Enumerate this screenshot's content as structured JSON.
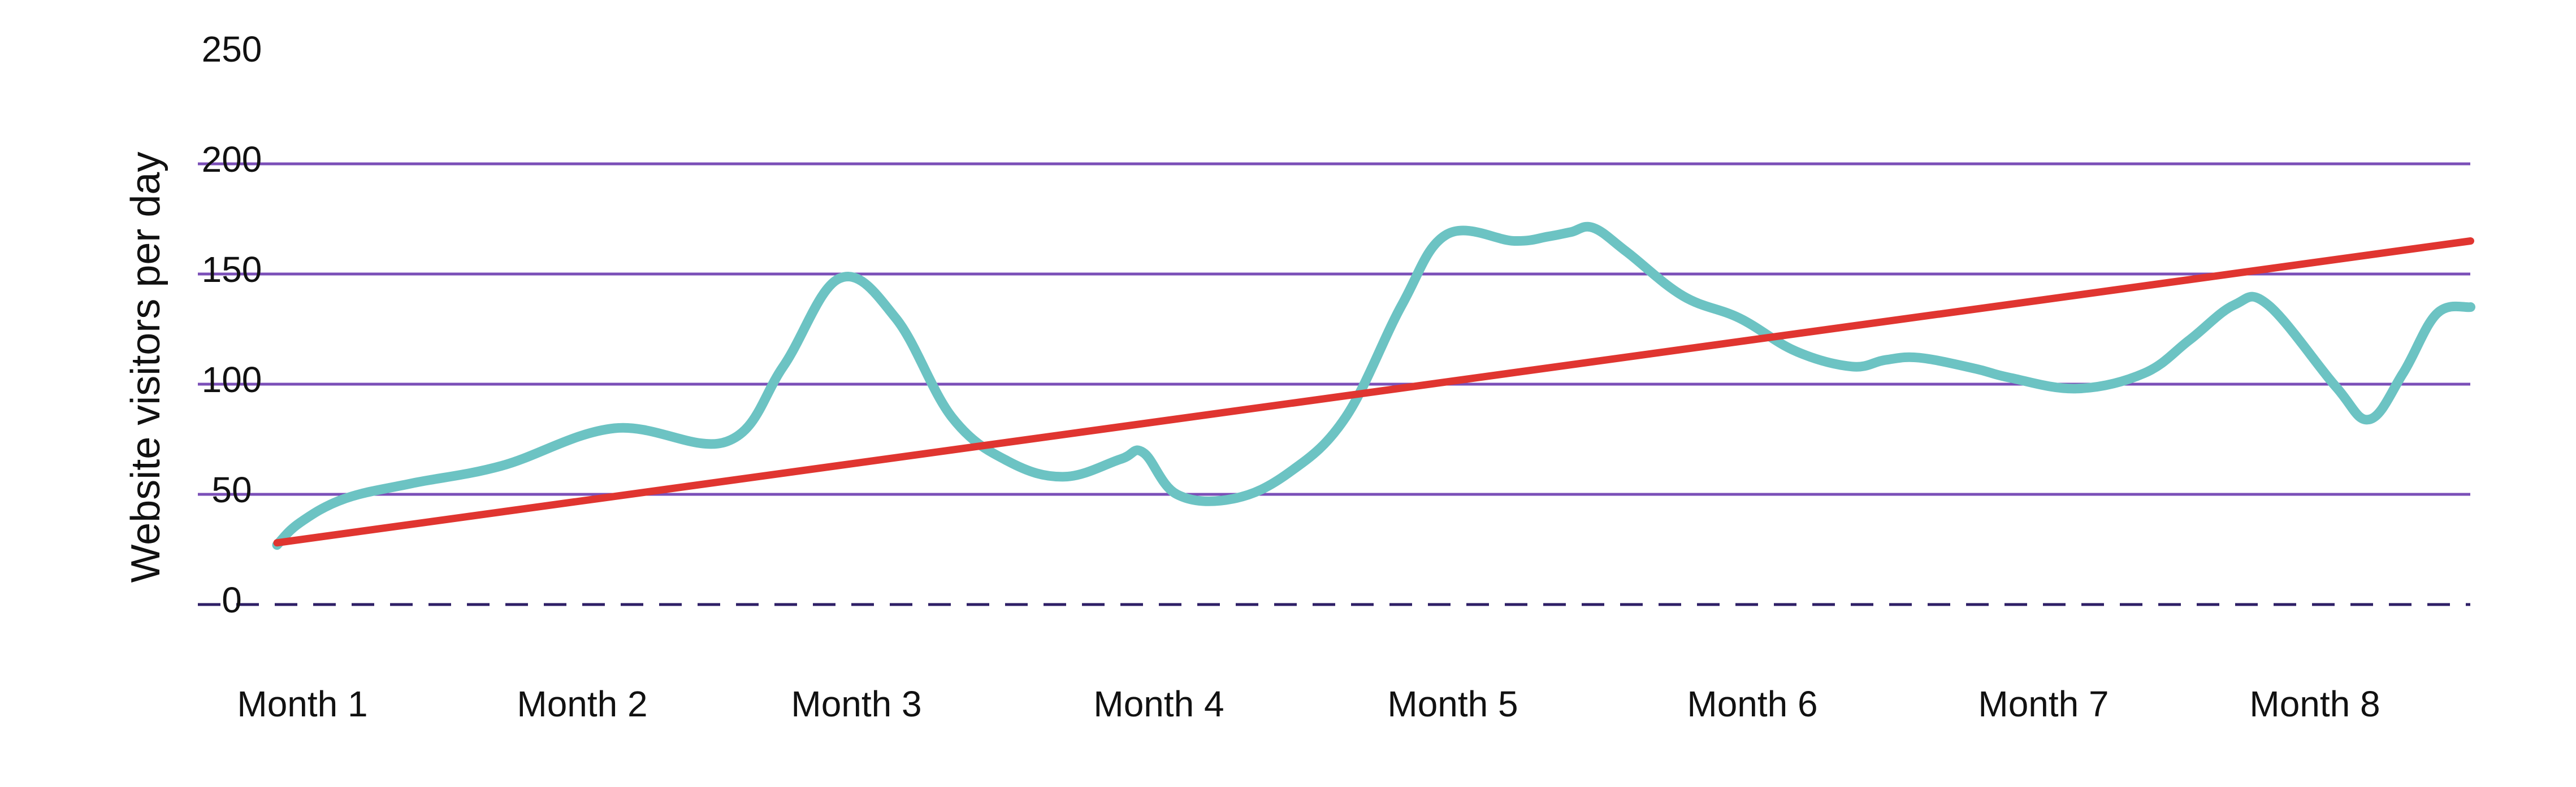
{
  "chart_data": {
    "type": "line",
    "title": "",
    "xlabel": "",
    "ylabel": "Website visitors per day",
    "ylim": [
      0,
      250
    ],
    "y_ticks": [
      "0",
      "50",
      "100",
      "150",
      "200",
      "250"
    ],
    "categories": [
      "Month 1",
      "Month 2",
      "Month 3",
      "Month 4",
      "Month 5",
      "Month 6",
      "Month 7",
      "Month 8"
    ],
    "grid": true,
    "legend": "none",
    "series": [
      {
        "name": "",
        "style": "line",
        "color": "#6cc3c3",
        "x": [
          0.0,
          0.1,
          0.3,
          0.6,
          1.0,
          1.5,
          2.0,
          2.25,
          2.5,
          2.75,
          3.0,
          3.25,
          3.5,
          3.75,
          3.85,
          4.0,
          4.25,
          4.5,
          4.75,
          5.0,
          5.2,
          5.5,
          5.65,
          5.75,
          5.85,
          6.0,
          6.25,
          6.5,
          6.75,
          7.0,
          7.15,
          7.3,
          7.55,
          7.7,
          8.0,
          8.3,
          8.5,
          8.7,
          8.85,
          9.15,
          9.3,
          9.45,
          9.6,
          9.75
        ],
        "values": [
          27,
          37,
          48,
          55,
          63,
          80,
          74,
          108,
          148,
          130,
          85,
          65,
          58,
          66,
          69,
          50,
          48,
          60,
          85,
          136,
          168,
          165,
          167,
          169,
          171,
          160,
          140,
          130,
          115,
          108,
          111,
          112,
          107,
          103,
          98,
          105,
          120,
          136,
          136,
          99,
          84,
          105,
          132,
          135
        ]
      },
      {
        "name": "",
        "style": "line",
        "color": "#e03530",
        "x": [
          0.0,
          9.75
        ],
        "values": [
          28,
          165
        ]
      }
    ],
    "reference_line": {
      "value": 0,
      "style": "dashed",
      "color": "#2e1f66"
    },
    "gridline_color": "#7b4fb8"
  }
}
